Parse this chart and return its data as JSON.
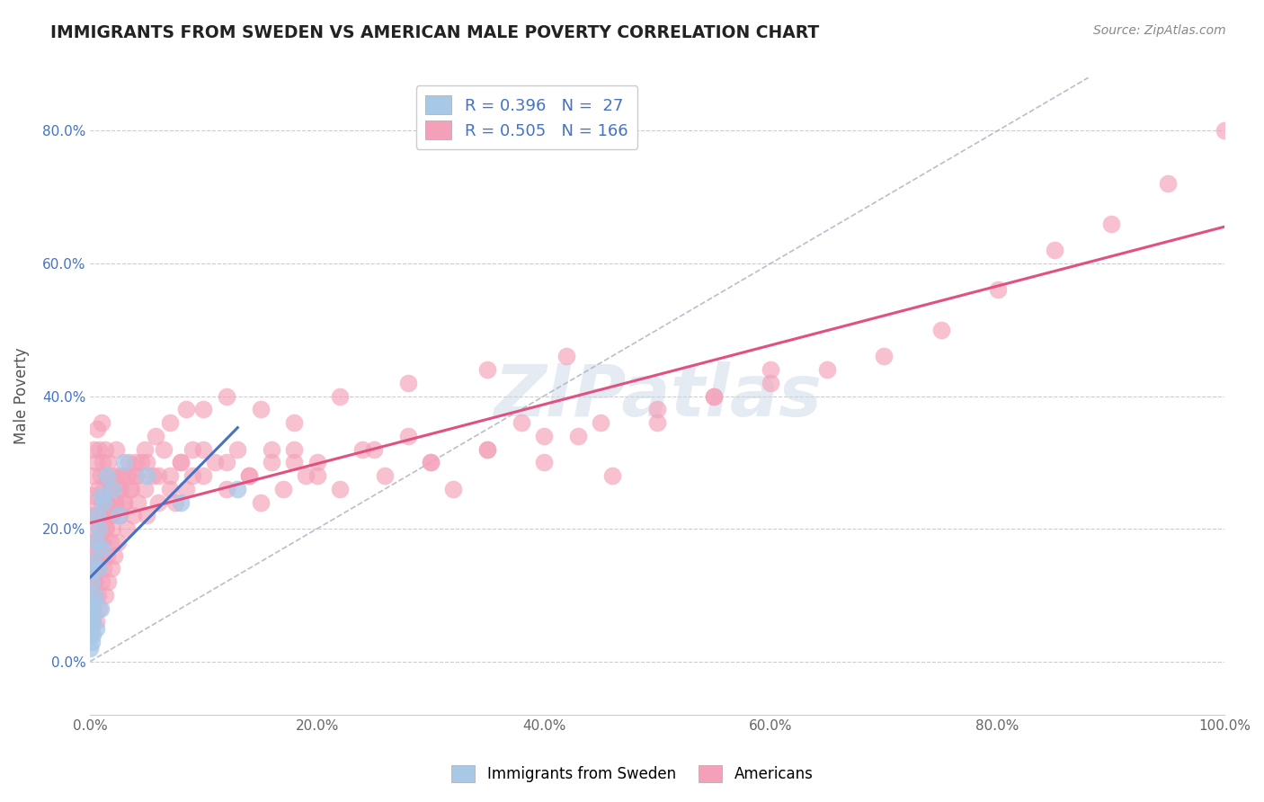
{
  "title": "IMMIGRANTS FROM SWEDEN VS AMERICAN MALE POVERTY CORRELATION CHART",
  "source": "Source: ZipAtlas.com",
  "ylabel": "Male Poverty",
  "legend_labels": [
    "Immigrants from Sweden",
    "Americans"
  ],
  "R_sweden": 0.396,
  "N_sweden": 27,
  "R_americans": 0.505,
  "N_americans": 166,
  "color_sweden": "#a8c8e8",
  "color_americans": "#f4a0b8",
  "line_color_sweden": "#4472c4",
  "line_color_americans": "#e05080",
  "watermark": "ZIPatlas",
  "xlim": [
    0.0,
    1.0
  ],
  "ylim": [
    -0.08,
    0.88
  ],
  "yticks": [
    0.0,
    0.2,
    0.4,
    0.6,
    0.8
  ],
  "ytick_labels": [
    "0.0%",
    "20.0%",
    "40.0%",
    "60.0%",
    "80.0%"
  ],
  "xticks": [
    0.0,
    0.2,
    0.4,
    0.6,
    0.8,
    1.0
  ],
  "xtick_labels": [
    "0.0%",
    "20.0%",
    "40.0%",
    "60.0%",
    "80.0%",
    "100.0%"
  ],
  "sweden_x": [
    0.0,
    0.0,
    0.0,
    0.001,
    0.001,
    0.001,
    0.002,
    0.002,
    0.003,
    0.003,
    0.004,
    0.005,
    0.005,
    0.006,
    0.007,
    0.008,
    0.009,
    0.01,
    0.01,
    0.012,
    0.015,
    0.02,
    0.025,
    0.03,
    0.05,
    0.08,
    0.13
  ],
  "sweden_y": [
    0.02,
    0.05,
    0.08,
    0.03,
    0.06,
    0.12,
    0.04,
    0.09,
    0.07,
    0.15,
    0.1,
    0.05,
    0.18,
    0.22,
    0.14,
    0.2,
    0.08,
    0.25,
    0.17,
    0.24,
    0.28,
    0.26,
    0.22,
    0.3,
    0.28,
    0.24,
    0.26
  ],
  "americans_x": [
    0.0,
    0.0,
    0.0,
    0.0,
    0.0,
    0.001,
    0.001,
    0.001,
    0.001,
    0.002,
    0.002,
    0.002,
    0.003,
    0.003,
    0.004,
    0.004,
    0.005,
    0.005,
    0.005,
    0.006,
    0.006,
    0.006,
    0.007,
    0.007,
    0.008,
    0.008,
    0.008,
    0.009,
    0.009,
    0.01,
    0.01,
    0.01,
    0.011,
    0.011,
    0.012,
    0.012,
    0.013,
    0.013,
    0.014,
    0.014,
    0.015,
    0.015,
    0.016,
    0.016,
    0.017,
    0.018,
    0.018,
    0.019,
    0.02,
    0.02,
    0.021,
    0.022,
    0.023,
    0.024,
    0.025,
    0.026,
    0.028,
    0.03,
    0.032,
    0.034,
    0.036,
    0.038,
    0.04,
    0.042,
    0.045,
    0.048,
    0.05,
    0.055,
    0.06,
    0.065,
    0.07,
    0.075,
    0.08,
    0.085,
    0.09,
    0.1,
    0.11,
    0.12,
    0.13,
    0.14,
    0.15,
    0.16,
    0.17,
    0.18,
    0.19,
    0.2,
    0.22,
    0.24,
    0.26,
    0.28,
    0.3,
    0.32,
    0.35,
    0.38,
    0.4,
    0.43,
    0.46,
    0.5,
    0.55,
    0.6,
    0.0,
    0.001,
    0.002,
    0.003,
    0.004,
    0.005,
    0.006,
    0.008,
    0.01,
    0.012,
    0.015,
    0.018,
    0.02,
    0.025,
    0.03,
    0.035,
    0.04,
    0.05,
    0.06,
    0.07,
    0.08,
    0.09,
    0.1,
    0.12,
    0.14,
    0.16,
    0.18,
    0.2,
    0.25,
    0.3,
    0.35,
    0.4,
    0.45,
    0.5,
    0.55,
    0.6,
    0.65,
    0.7,
    0.75,
    0.8,
    0.85,
    0.9,
    0.95,
    1.0,
    0.002,
    0.004,
    0.006,
    0.009,
    0.013,
    0.017,
    0.022,
    0.027,
    0.033,
    0.04,
    0.048,
    0.058,
    0.07,
    0.085,
    0.1,
    0.12,
    0.15,
    0.18,
    0.22,
    0.28,
    0.35,
    0.42
  ],
  "americans_y": [
    0.08,
    0.12,
    0.05,
    0.15,
    0.22,
    0.1,
    0.18,
    0.25,
    0.14,
    0.2,
    0.28,
    0.08,
    0.16,
    0.32,
    0.12,
    0.24,
    0.06,
    0.18,
    0.3,
    0.14,
    0.22,
    0.35,
    0.1,
    0.26,
    0.08,
    0.2,
    0.32,
    0.16,
    0.28,
    0.12,
    0.24,
    0.36,
    0.18,
    0.3,
    0.14,
    0.26,
    0.1,
    0.32,
    0.2,
    0.28,
    0.16,
    0.24,
    0.12,
    0.3,
    0.22,
    0.18,
    0.26,
    0.14,
    0.2,
    0.28,
    0.16,
    0.24,
    0.32,
    0.18,
    0.26,
    0.22,
    0.28,
    0.24,
    0.2,
    0.3,
    0.26,
    0.22,
    0.28,
    0.24,
    0.3,
    0.26,
    0.22,
    0.28,
    0.24,
    0.32,
    0.28,
    0.24,
    0.3,
    0.26,
    0.32,
    0.28,
    0.3,
    0.26,
    0.32,
    0.28,
    0.24,
    0.3,
    0.26,
    0.32,
    0.28,
    0.3,
    0.26,
    0.32,
    0.28,
    0.34,
    0.3,
    0.26,
    0.32,
    0.36,
    0.3,
    0.34,
    0.28,
    0.36,
    0.4,
    0.44,
    0.04,
    0.06,
    0.08,
    0.1,
    0.12,
    0.14,
    0.16,
    0.18,
    0.2,
    0.22,
    0.24,
    0.26,
    0.22,
    0.28,
    0.24,
    0.26,
    0.28,
    0.3,
    0.28,
    0.26,
    0.3,
    0.28,
    0.32,
    0.3,
    0.28,
    0.32,
    0.3,
    0.28,
    0.32,
    0.3,
    0.32,
    0.34,
    0.36,
    0.38,
    0.4,
    0.42,
    0.44,
    0.46,
    0.5,
    0.56,
    0.62,
    0.66,
    0.72,
    0.8,
    0.06,
    0.1,
    0.14,
    0.18,
    0.2,
    0.22,
    0.24,
    0.26,
    0.28,
    0.3,
    0.32,
    0.34,
    0.36,
    0.38,
    0.38,
    0.4,
    0.38,
    0.36,
    0.4,
    0.42,
    0.44,
    0.46
  ]
}
